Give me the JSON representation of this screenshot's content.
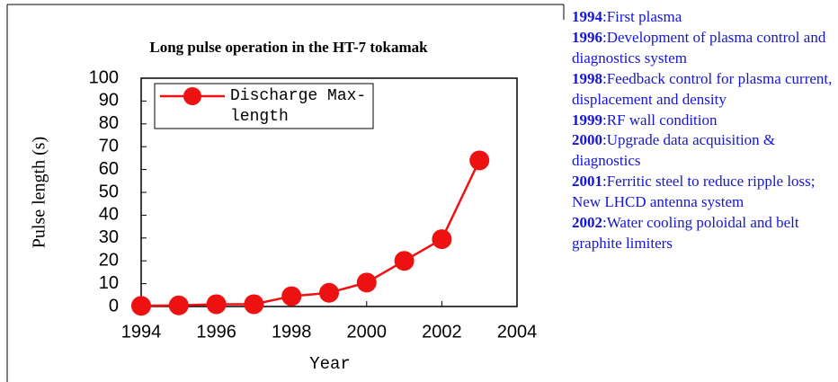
{
  "chart_data": {
    "type": "line",
    "title": "Long pulse operation in the HT-7 tokamak",
    "x_label": "Year",
    "y_label": "Pulse length (s)",
    "x": [
      1994,
      1995,
      1996,
      1997,
      1998,
      1999,
      2000,
      2001,
      2002,
      2003
    ],
    "series": [
      {
        "name": "Discharge Max-length",
        "color": "#ee1111",
        "values": [
          0.3,
          0.5,
          1,
          1,
          4.5,
          6,
          10.5,
          20,
          29.5,
          64
        ]
      }
    ],
    "xlim": [
      1994,
      2004
    ],
    "xticks": [
      1994,
      1996,
      1998,
      2000,
      2002,
      2004
    ],
    "ylim": [
      0,
      100
    ],
    "yticks": [
      0,
      10,
      20,
      30,
      40,
      50,
      60,
      70,
      80,
      90,
      100
    ],
    "grid": false,
    "legend": "top-left"
  },
  "notes": [
    {
      "year": "1994",
      "text": ":First plasma"
    },
    {
      "year": "1996",
      "text": ":Development of plasma control and diagnostics system"
    },
    {
      "year": "1998",
      "text": ":Feedback control for plasma current, displacement and density"
    },
    {
      "year": "1999",
      "text": ":RF wall condition"
    },
    {
      "year": "2000",
      "text": ":Upgrade data acquisition & diagnostics"
    },
    {
      "year": "2001",
      "text": ":Ferritic steel to reduce ripple loss; New LHCD antenna system"
    },
    {
      "year": "2002",
      "text": ":Water cooling poloidal and belt graphite limiters"
    }
  ]
}
